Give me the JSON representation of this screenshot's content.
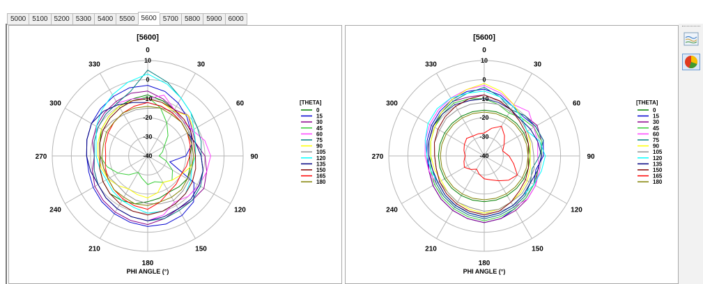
{
  "tabs": [
    {
      "label": "5000"
    },
    {
      "label": "5100"
    },
    {
      "label": "5200"
    },
    {
      "label": "5300"
    },
    {
      "label": "5400"
    },
    {
      "label": "5500"
    },
    {
      "label": "5600",
      "active": true
    },
    {
      "label": "5700"
    },
    {
      "label": "5800"
    },
    {
      "label": "5900"
    },
    {
      "label": "6000"
    }
  ],
  "toolbar": {
    "lines_icon": "line-chart-icon",
    "pie_icon": "pie-chart-icon"
  },
  "chart_data": [
    {
      "type": "polar-line",
      "title": "[5600]",
      "xlabel": "PHI ANGLE (°)",
      "legend_title": "[THETA]",
      "legend_position": "right",
      "radial_range": [
        -40,
        10
      ],
      "radial_ticks": [
        "10",
        "0",
        "-10",
        "-20",
        "-30",
        "-40"
      ],
      "angle_ticks": [
        "0",
        "30",
        "60",
        "90",
        "120",
        "150",
        "180",
        "210",
        "240",
        "270",
        "300",
        "330"
      ],
      "grid": true,
      "phi": [
        0,
        15,
        30,
        45,
        60,
        75,
        90,
        105,
        120,
        135,
        150,
        165,
        180,
        195,
        210,
        225,
        240,
        255,
        270,
        285,
        300,
        315,
        330,
        345
      ],
      "series": [
        {
          "name": "0",
          "color": "#007f00",
          "values": [
            -8,
            -10,
            -12,
            -14,
            -15,
            -16,
            -18,
            -17,
            -16,
            -17,
            -18,
            -17,
            -16,
            -14,
            -13,
            -12,
            -13,
            -14,
            -15,
            -14,
            -12,
            -11,
            -10,
            -9
          ]
        },
        {
          "name": "15",
          "color": "#0000d0",
          "values": [
            -3,
            -5,
            -8,
            -11,
            -14,
            -16,
            -20,
            -28,
            -12,
            -6,
            -4,
            -3,
            -3,
            -4,
            -5,
            -6,
            -7,
            -8,
            -8,
            -7,
            -6,
            -5,
            -4,
            -3
          ]
        },
        {
          "name": "30",
          "color": "#8a008a",
          "values": [
            -6,
            -9,
            -12,
            -10,
            -13,
            -14,
            -10,
            -8,
            -6,
            -7,
            -8,
            -6,
            -4,
            -5,
            -6,
            -7,
            -8,
            -10,
            -12,
            -10,
            -9,
            -8,
            -7,
            -6
          ]
        },
        {
          "name": "45",
          "color": "#33cc33",
          "values": [
            -9,
            -14,
            -20,
            -25,
            -30,
            -32,
            -34,
            -30,
            -25,
            -22,
            -24,
            -26,
            -25,
            -28,
            -30,
            -26,
            -22,
            -18,
            -15,
            -14,
            -13,
            -12,
            -11,
            -10
          ]
        },
        {
          "name": "60",
          "color": "#ff40ff",
          "values": [
            -10,
            -7,
            -12,
            -14,
            -13,
            -9,
            -7,
            -8,
            -9,
            -10,
            -12,
            -8,
            -6,
            -7,
            -8,
            -9,
            -10,
            -11,
            -12,
            -11,
            -10,
            -9,
            -8,
            -9
          ]
        },
        {
          "name": "75",
          "color": "#008080",
          "values": [
            5,
            0,
            -5,
            -8,
            -10,
            -11,
            -12,
            -10,
            -8,
            -7,
            -7,
            -6,
            -6,
            -7,
            -8,
            -9,
            -10,
            -11,
            -12,
            -11,
            -10,
            -9,
            -8,
            -5
          ]
        },
        {
          "name": "90",
          "color": "#ffff00",
          "values": [
            -10,
            -11,
            -13,
            -10,
            -12,
            -14,
            -15,
            -17,
            -20,
            -22,
            -24,
            -20,
            -18,
            -19,
            -20,
            -18,
            -16,
            -15,
            -14,
            -13,
            -12,
            -11,
            -10,
            -10
          ]
        },
        {
          "name": "105",
          "color": "#909090",
          "values": [
            -15,
            -14,
            -13,
            -14,
            -15,
            -16,
            -17,
            -16,
            -15,
            -14,
            -13,
            -14,
            -15,
            -16,
            -17,
            -18,
            -17,
            -16,
            -15,
            -14,
            -13,
            -14,
            -15,
            -15
          ]
        },
        {
          "name": "120",
          "color": "#00ffff",
          "values": [
            3,
            -1,
            -5,
            -8,
            -12,
            -14,
            -15,
            -16,
            -14,
            -12,
            -11,
            -10,
            -10,
            -12,
            -13,
            -14,
            -15,
            -14,
            -13,
            -12,
            -9,
            -6,
            -3,
            0
          ]
        },
        {
          "name": "135",
          "color": "#000080",
          "values": [
            -12,
            -13,
            -14,
            -15,
            -16,
            -14,
            -12,
            -10,
            -9,
            -8,
            -8,
            -7,
            -6,
            -7,
            -8,
            -9,
            -10,
            -9,
            -8,
            -7,
            -6,
            -7,
            -9,
            -11
          ]
        },
        {
          "name": "150",
          "color": "#800000",
          "values": [
            -10,
            -11,
            -12,
            -13,
            -14,
            -15,
            -15,
            -14,
            -13,
            -12,
            -11,
            -10,
            -9,
            -10,
            -11,
            -12,
            -13,
            -14,
            -15,
            -14,
            -13,
            -12,
            -11,
            -10
          ]
        },
        {
          "name": "165",
          "color": "#ff0000",
          "values": [
            -12,
            -13,
            -14,
            -15,
            -16,
            -17,
            -18,
            -19,
            -20,
            -19,
            -18,
            -15,
            -12,
            -13,
            -14,
            -15,
            -16,
            -17,
            -18,
            -17,
            -16,
            -15,
            -14,
            -13
          ]
        },
        {
          "name": "180",
          "color": "#808000",
          "values": [
            -14,
            -14,
            -15,
            -15,
            -16,
            -16,
            -16,
            -16,
            -16,
            -15,
            -15,
            -15,
            -14,
            -14,
            -15,
            -15,
            -16,
            -16,
            -16,
            -16,
            -15,
            -15,
            -14,
            -14
          ]
        }
      ]
    },
    {
      "type": "polar-line",
      "title": "[5600]",
      "xlabel": "PHI ANGLE (°)",
      "legend_title": "[THETA]",
      "legend_position": "right",
      "radial_range": [
        -40,
        10
      ],
      "radial_ticks": [
        "10",
        "0",
        "-10",
        "-20",
        "-30",
        "-40"
      ],
      "angle_ticks": [
        "0",
        "30",
        "60",
        "90",
        "120",
        "150",
        "180",
        "210",
        "240",
        "270",
        "300",
        "330"
      ],
      "grid": true,
      "phi": [
        0,
        15,
        30,
        45,
        60,
        75,
        90,
        105,
        120,
        135,
        150,
        165,
        180,
        195,
        210,
        225,
        240,
        255,
        270,
        285,
        300,
        315,
        330,
        345
      ],
      "series": [
        {
          "name": "0",
          "color": "#007f00",
          "values": [
            -16,
            -16,
            -16,
            -16,
            -16,
            -16,
            -16,
            -16,
            -16,
            -16,
            -16,
            -16,
            -16,
            -16,
            -16,
            -16,
            -16,
            -16,
            -16,
            -16,
            -16,
            -16,
            -16,
            -16
          ]
        },
        {
          "name": "15",
          "color": "#0000d0",
          "values": [
            -5,
            -7,
            -10,
            -11,
            -9,
            -8,
            -9,
            -12,
            -10,
            -9,
            -8,
            -6,
            -5,
            -6,
            -7,
            -8,
            -9,
            -10,
            -10,
            -9,
            -8,
            -7,
            -6,
            -5
          ]
        },
        {
          "name": "30",
          "color": "#8a008a",
          "values": [
            -8,
            -10,
            -12,
            -10,
            -8,
            -9,
            -10,
            -11,
            -9,
            -8,
            -7,
            -6,
            -5,
            -6,
            -7,
            -8,
            -9,
            -10,
            -11,
            -10,
            -9,
            -8,
            -7,
            -8
          ]
        },
        {
          "name": "45",
          "color": "#33cc33",
          "values": [
            -10,
            -12,
            -14,
            -12,
            -10,
            -9,
            -10,
            -11,
            -10,
            -9,
            -8,
            -7,
            -6,
            -7,
            -8,
            -9,
            -10,
            -11,
            -12,
            -11,
            -10,
            -9,
            -8,
            -9
          ]
        },
        {
          "name": "60",
          "color": "#ff40ff",
          "values": [
            -3,
            -6,
            -9,
            -7,
            -10,
            -11,
            -12,
            -10,
            -9,
            -8,
            -9,
            -8,
            -7,
            -8,
            -9,
            -10,
            -11,
            -10,
            -9,
            -8,
            -7,
            -6,
            -5,
            -4
          ]
        },
        {
          "name": "75",
          "color": "#008080",
          "values": [
            -4,
            -8,
            -12,
            -10,
            -9,
            -8,
            -11,
            -14,
            -12,
            -10,
            -9,
            -8,
            -7,
            -8,
            -9,
            -10,
            -11,
            -12,
            -11,
            -10,
            -9,
            -8,
            -7,
            -6
          ]
        },
        {
          "name": "90",
          "color": "#ffff00",
          "values": [
            -2,
            -5,
            -9,
            -12,
            -14,
            -15,
            -16,
            -15,
            -14,
            -13,
            -12,
            -11,
            -10,
            -11,
            -12,
            -13,
            -14,
            -13,
            -12,
            -11,
            -10,
            -8,
            -6,
            -4
          ]
        },
        {
          "name": "105",
          "color": "#909090",
          "values": [
            -12,
            -12,
            -13,
            -13,
            -14,
            -14,
            -14,
            -13,
            -13,
            -12,
            -12,
            -11,
            -11,
            -12,
            -12,
            -13,
            -13,
            -14,
            -14,
            -13,
            -13,
            -12,
            -12,
            -12
          ]
        },
        {
          "name": "120",
          "color": "#00ffff",
          "values": [
            -6,
            -8,
            -10,
            -12,
            -14,
            -10,
            -8,
            -9,
            -10,
            -11,
            -10,
            -9,
            -8,
            -9,
            -10,
            -11,
            -12,
            -11,
            -10,
            -8,
            -6,
            -5,
            -5,
            -6
          ]
        },
        {
          "name": "135",
          "color": "#000080",
          "values": [
            -10,
            -11,
            -12,
            -13,
            -12,
            -11,
            -10,
            -11,
            -12,
            -11,
            -10,
            -9,
            -8,
            -9,
            -10,
            -11,
            -12,
            -12,
            -11,
            -10,
            -9,
            -9,
            -9,
            -10
          ]
        },
        {
          "name": "150",
          "color": "#800000",
          "values": [
            -8,
            -10,
            -12,
            -14,
            -15,
            -16,
            -17,
            -16,
            -15,
            -14,
            -12,
            -10,
            -9,
            -10,
            -11,
            -12,
            -13,
            -14,
            -14,
            -13,
            -12,
            -11,
            -10,
            -9
          ]
        },
        {
          "name": "165",
          "color": "#ff0000",
          "values": [
            -28,
            -25,
            -22,
            -25,
            -28,
            -30,
            -27,
            -24,
            -20,
            -22,
            -25,
            -27,
            -28,
            -30,
            -32,
            -30,
            -28,
            -29,
            -30,
            -29,
            -28,
            -27,
            -28,
            -28
          ]
        },
        {
          "name": "180",
          "color": "#808000",
          "values": [
            -17,
            -17,
            -17,
            -17,
            -17,
            -17,
            -17,
            -17,
            -17,
            -17,
            -17,
            -17,
            -17,
            -17,
            -17,
            -17,
            -17,
            -17,
            -17,
            -17,
            -17,
            -17,
            -17,
            -17
          ]
        }
      ]
    }
  ]
}
